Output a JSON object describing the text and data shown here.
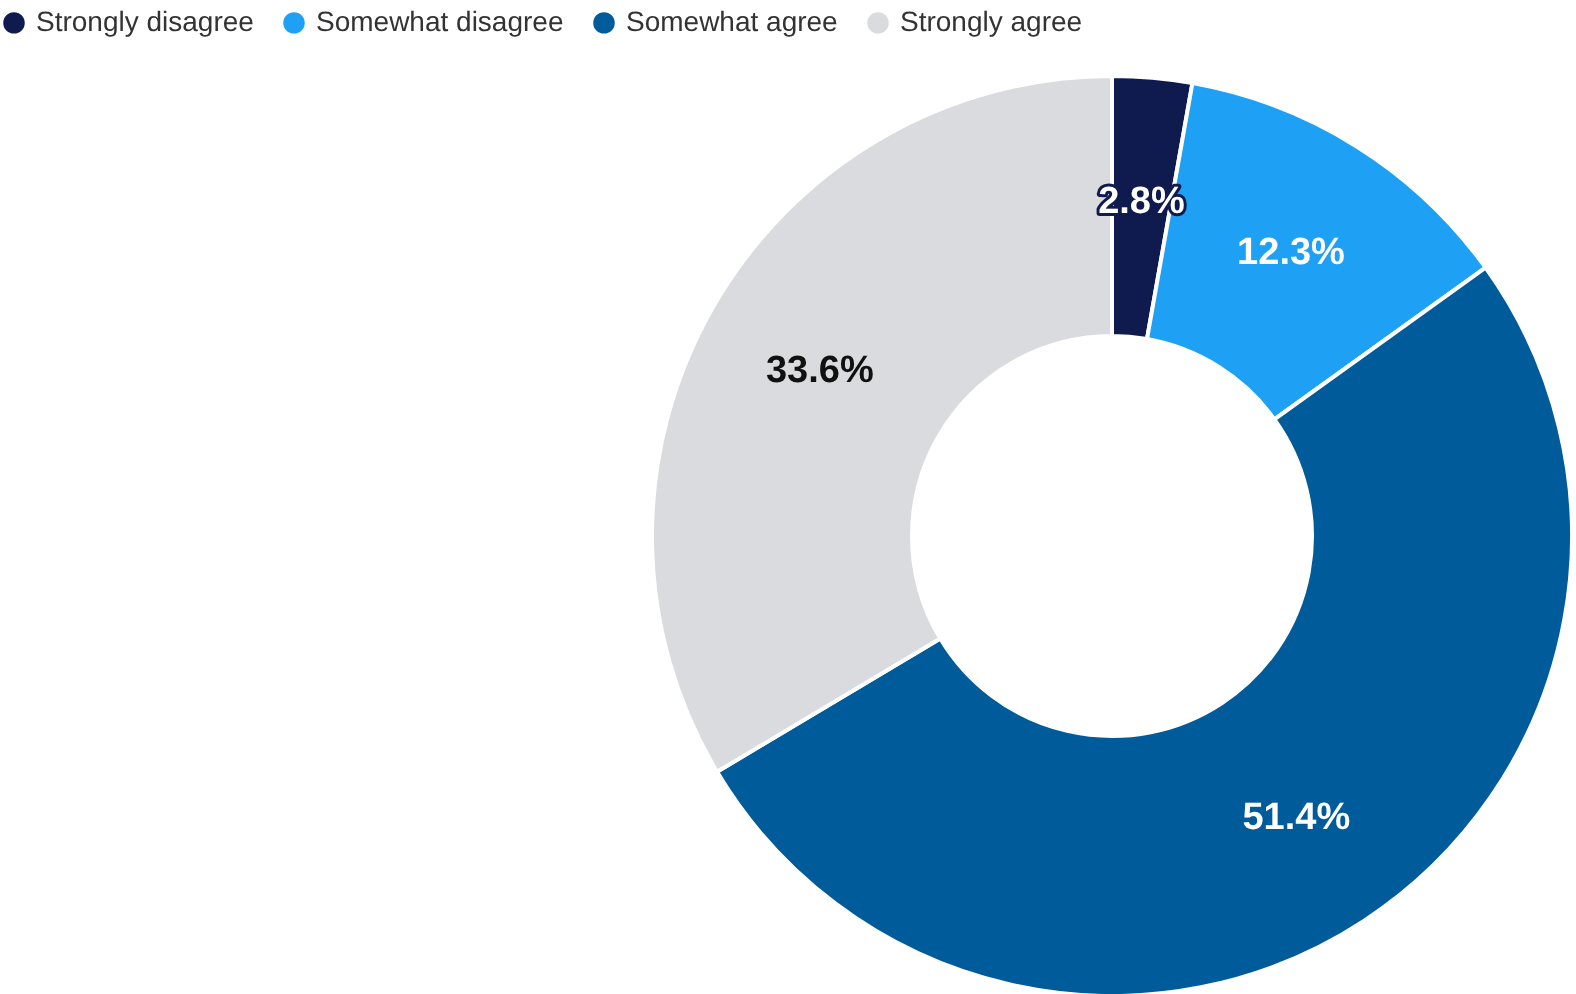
{
  "chart_data": {
    "type": "donut",
    "categories": [
      "Strongly disagree",
      "Somewhat disagree",
      "Somewhat agree",
      "Strongly agree"
    ],
    "values": [
      2.8,
      12.3,
      51.4,
      33.6
    ],
    "colors": [
      "#0f1a4e",
      "#1ea1f4",
      "#005b9a",
      "#dadbde"
    ],
    "value_labels": [
      "2.8%",
      "12.3%",
      "51.4%",
      "33.6%"
    ],
    "legend": "top left"
  }
}
